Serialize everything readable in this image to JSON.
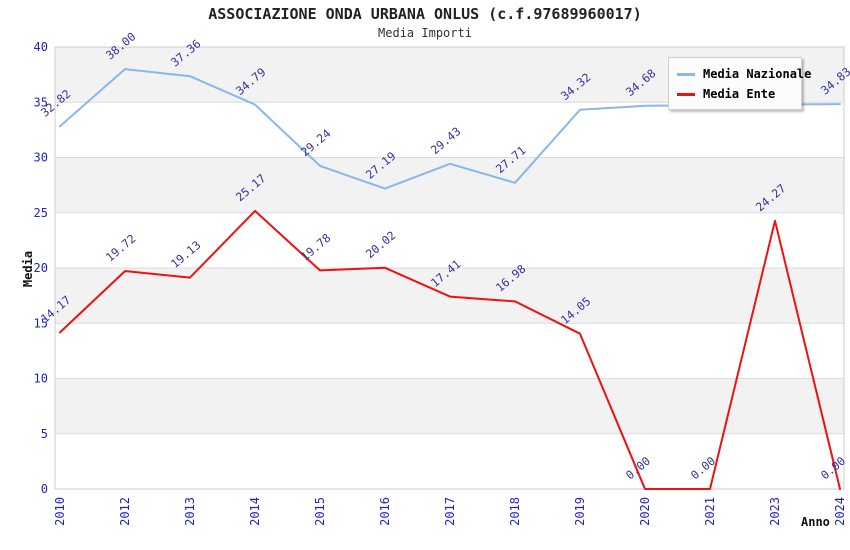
{
  "header": {
    "title": "ASSOCIAZIONE ONDA URBANA ONLUS (c.f.97689960017)",
    "subtitle": "Media Importi"
  },
  "chart_data": {
    "type": "line",
    "title": "ASSOCIAZIONE ONDA URBANA ONLUS (c.f.97689960017)",
    "subtitle": "Media Importi",
    "xlabel": "Anno",
    "ylabel": "Media",
    "ylim": [
      0,
      40
    ],
    "yticks": [
      0,
      5,
      10,
      15,
      20,
      25,
      30,
      35,
      40
    ],
    "grid": true,
    "banded_background": true,
    "legend_position": "top-right",
    "categories": [
      "2010",
      "2012",
      "2013",
      "2014",
      "2015",
      "2016",
      "2017",
      "2018",
      "2019",
      "2020",
      "2021",
      "2023",
      "2024"
    ],
    "series": [
      {
        "name": "Media Nazionale",
        "color": "#88b7e8",
        "values": [
          32.82,
          38.0,
          37.36,
          34.79,
          29.24,
          27.19,
          29.43,
          27.71,
          34.32,
          34.68,
          34.74,
          34.8,
          34.83
        ],
        "labels": [
          "32.82",
          "38.00",
          "37.36",
          "34.79",
          "29.24",
          "27.19",
          "29.43",
          "27.71",
          "34.32",
          "34.68",
          null,
          null,
          "34.83"
        ]
      },
      {
        "name": "Media Ente",
        "color": "#ee1111",
        "values": [
          14.17,
          19.72,
          19.13,
          25.17,
          19.78,
          20.02,
          17.41,
          16.98,
          14.05,
          0.0,
          0.0,
          24.27,
          0.0
        ],
        "labels": [
          "14.17",
          "19.72",
          "19.13",
          "25.17",
          "19.78",
          "20.02",
          "17.41",
          "16.98",
          "14.05",
          "0.00",
          "0.00",
          "24.27",
          "0.00"
        ]
      }
    ]
  },
  "colors": {
    "axis_tick_label": "#2222cc",
    "data_label": "#333399",
    "band_gray": "#f2f2f2",
    "band_white": "#ffffff",
    "gridline": "#dcdcdc",
    "plot_border": "#cccccc",
    "title_text": "#222222",
    "axis_title_text": "#111111"
  }
}
